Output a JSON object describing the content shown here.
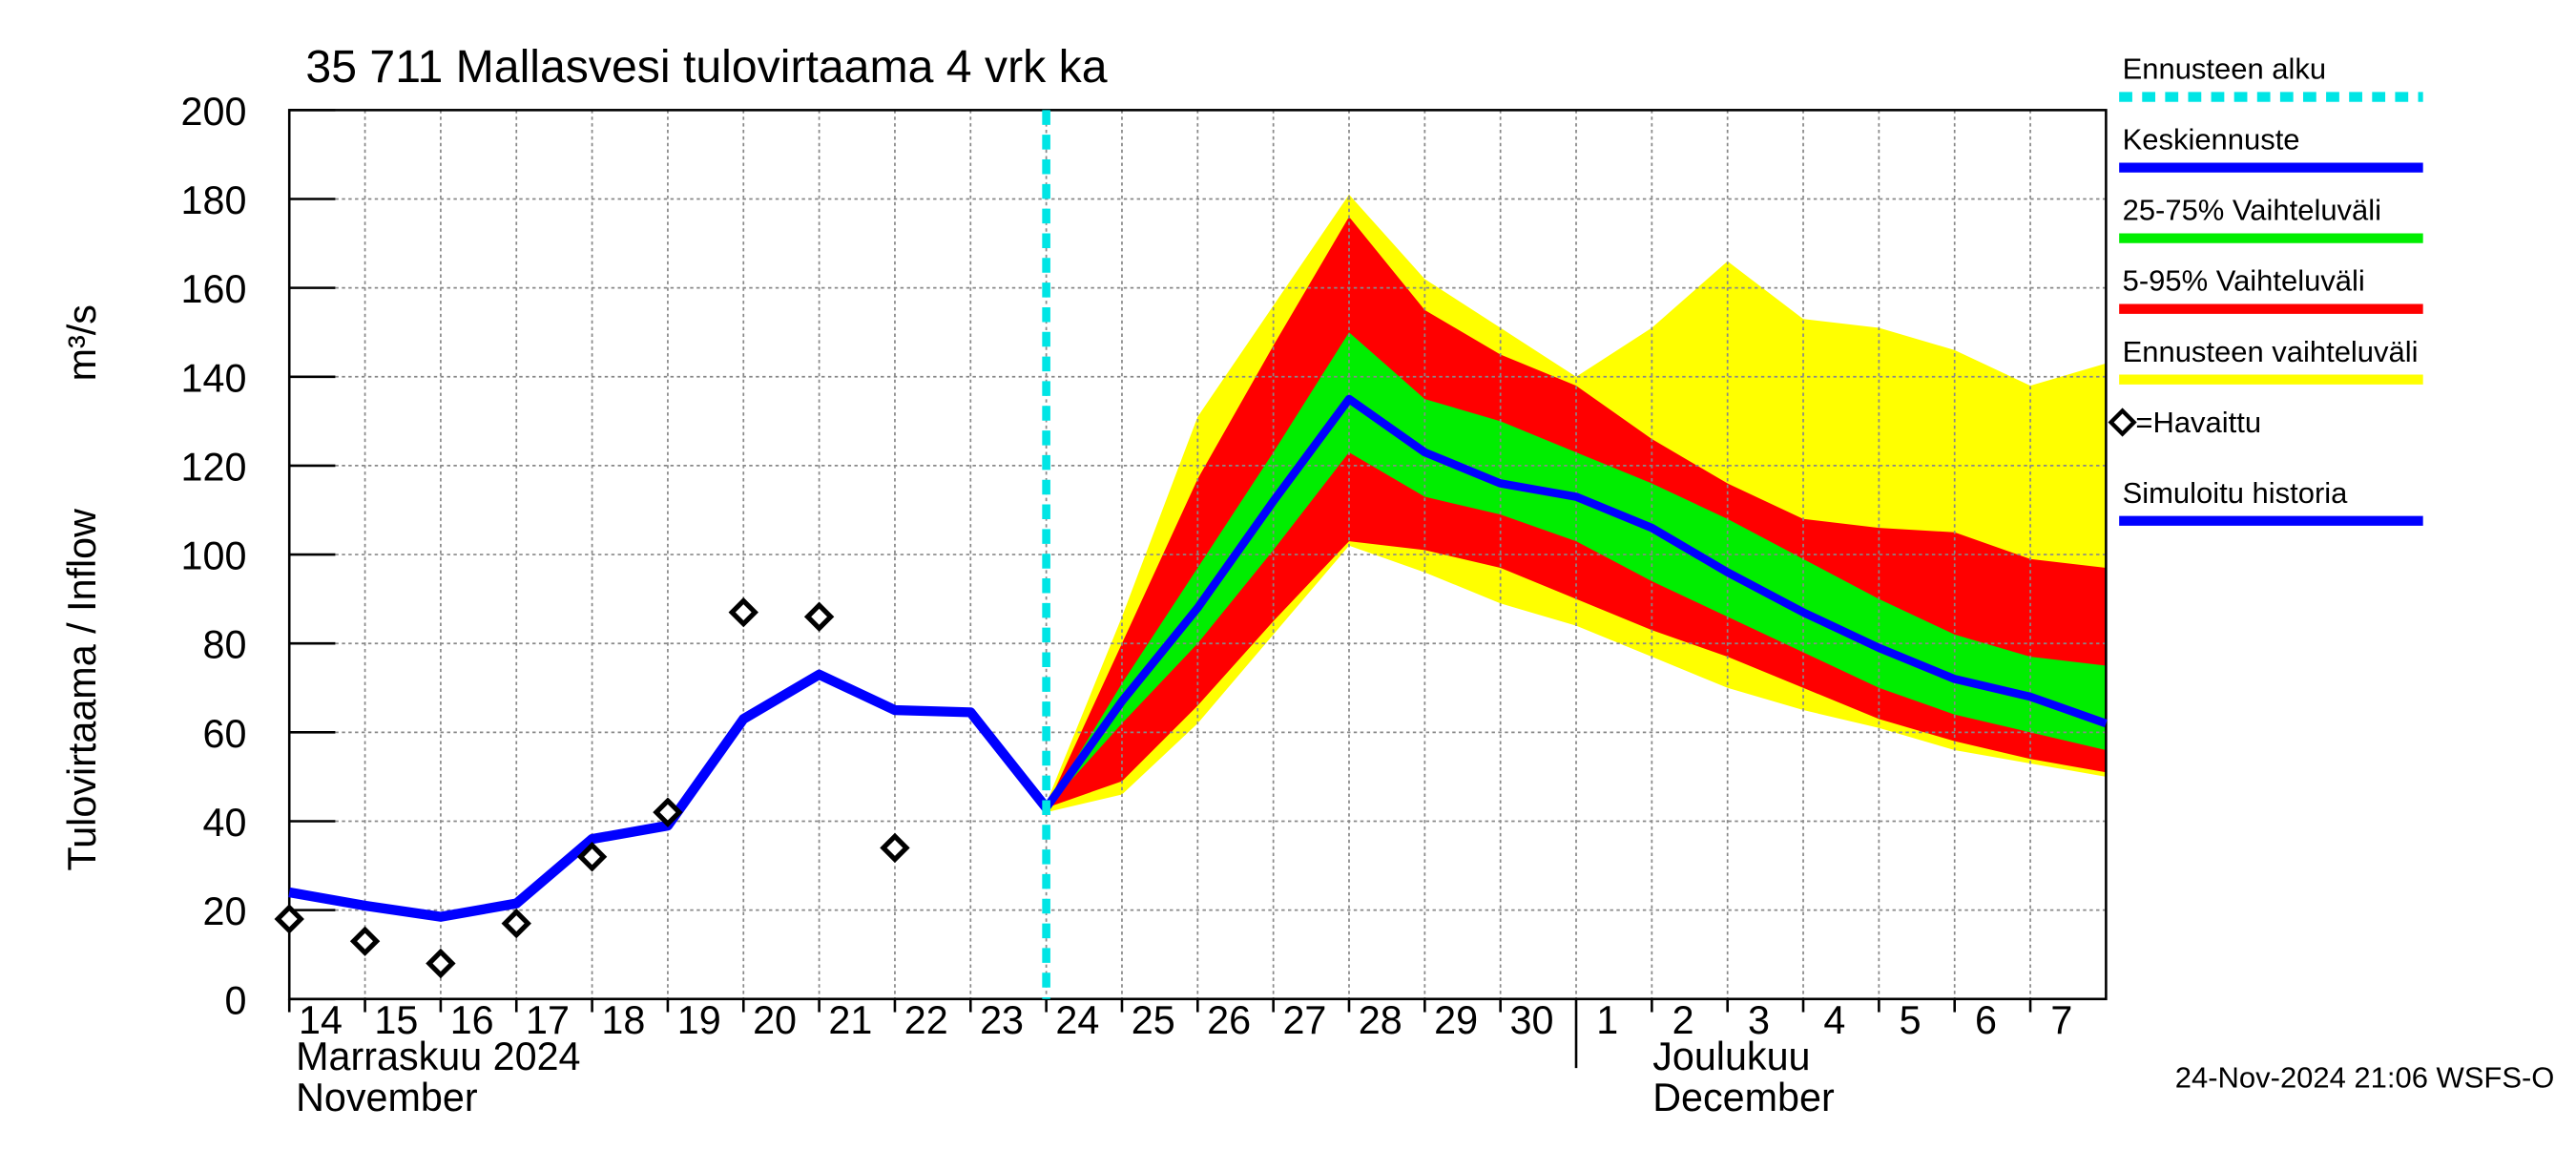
{
  "chart_data": {
    "type": "line",
    "title": "35 711 Mallasvesi tulovirtaama 4 vrk ka",
    "y_label": "Tulovirtaama / Inflow",
    "y_unit": "m³/s",
    "months": [
      "Marraskuu 2024",
      "November",
      "Joulukuu",
      "December"
    ],
    "footer": "24-Nov-2024 21:06 WSFS-O",
    "x": [
      0,
      1,
      2,
      3,
      4,
      5,
      6,
      7,
      8,
      9,
      10,
      11,
      12,
      13,
      14,
      15,
      16,
      17,
      18,
      19,
      20,
      21,
      22,
      23,
      24
    ],
    "xlim": [
      0,
      24
    ],
    "xticks": [
      {
        "value": 0,
        "label": "14"
      },
      {
        "value": 1,
        "label": "15"
      },
      {
        "value": 2,
        "label": "16"
      },
      {
        "value": 3,
        "label": "17"
      },
      {
        "value": 4,
        "label": "18"
      },
      {
        "value": 5,
        "label": "19"
      },
      {
        "value": 6,
        "label": "20"
      },
      {
        "value": 7,
        "label": "21"
      },
      {
        "value": 8,
        "label": "22"
      },
      {
        "value": 9,
        "label": "23"
      },
      {
        "value": 10,
        "label": "24"
      },
      {
        "value": 11,
        "label": "25"
      },
      {
        "value": 12,
        "label": "26"
      },
      {
        "value": 13,
        "label": "27"
      },
      {
        "value": 14,
        "label": "28"
      },
      {
        "value": 15,
        "label": "29"
      },
      {
        "value": 16,
        "label": "30"
      },
      {
        "value": 17,
        "label": "1"
      },
      {
        "value": 18,
        "label": "2"
      },
      {
        "value": 19,
        "label": "3"
      },
      {
        "value": 20,
        "label": "4"
      },
      {
        "value": 21,
        "label": "5"
      },
      {
        "value": 22,
        "label": "6"
      },
      {
        "value": 23,
        "label": "7"
      }
    ],
    "ylim": [
      0,
      200
    ],
    "yticks": [
      0,
      20,
      40,
      60,
      80,
      100,
      120,
      140,
      160,
      180,
      200
    ],
    "grid": true,
    "forecast_start": {
      "name": "Ennusteen alku",
      "x": 10,
      "color": "#00e5e5"
    },
    "bands": [
      {
        "name": "Ennusteen vaihteluväli",
        "color": "#ffff00",
        "lower": [
          null,
          null,
          null,
          null,
          null,
          null,
          null,
          null,
          null,
          null,
          42,
          46,
          62,
          82,
          102,
          96,
          89,
          84,
          77,
          70,
          65,
          61,
          56,
          53,
          50
        ],
        "upper": [
          null,
          null,
          null,
          null,
          null,
          null,
          null,
          null,
          null,
          null,
          44,
          86,
          131,
          156,
          181,
          162,
          151,
          140,
          151,
          166,
          153,
          151,
          146,
          138,
          143
        ]
      },
      {
        "name": "5-95% Vaihteluväli",
        "color": "#ff0000",
        "lower": [
          null,
          null,
          null,
          null,
          null,
          null,
          null,
          null,
          null,
          null,
          43,
          49,
          66,
          85,
          103,
          101,
          97,
          90,
          83,
          77,
          70,
          63,
          58,
          54,
          51
        ],
        "upper": [
          null,
          null,
          null,
          null,
          null,
          null,
          null,
          null,
          null,
          null,
          43,
          80,
          117,
          147,
          176,
          155,
          145,
          138,
          126,
          116,
          108,
          106,
          105,
          99,
          97
        ]
      },
      {
        "name": "25-75% Vaihteluväli",
        "color": "#00ee00",
        "lower": [
          null,
          null,
          null,
          null,
          null,
          null,
          null,
          null,
          null,
          null,
          43,
          62,
          80,
          101,
          123,
          113,
          109,
          103,
          94,
          86,
          78,
          70,
          64,
          60,
          56
        ],
        "upper": [
          null,
          null,
          null,
          null,
          null,
          null,
          null,
          null,
          null,
          null,
          43,
          71,
          97,
          123,
          150,
          135,
          130,
          123,
          116,
          108,
          99,
          90,
          82,
          77,
          75
        ]
      }
    ],
    "series": [
      {
        "name": "Keskiennuste",
        "color": "#0000ff",
        "values": [
          null,
          null,
          null,
          null,
          null,
          null,
          null,
          null,
          null,
          null,
          43,
          67,
          88,
          112,
          135,
          123,
          116,
          113,
          106,
          96,
          87,
          79,
          72,
          68,
          62
        ]
      },
      {
        "name": "Simuloitu historia",
        "color": "#0000ff",
        "values": [
          24,
          21,
          18.5,
          21.5,
          36,
          39,
          63,
          73,
          65,
          64.5,
          43,
          null,
          null,
          null,
          null,
          null,
          null,
          null,
          null,
          null,
          null,
          null,
          null,
          null,
          null
        ]
      }
    ],
    "observed": {
      "name": "=Havaittu",
      "color": "#000000",
      "values": [
        18,
        13,
        8,
        17,
        32,
        42,
        87,
        86,
        34,
        null,
        null,
        null,
        null,
        null,
        null,
        null,
        null,
        null,
        null,
        null,
        null,
        null,
        null,
        null,
        null
      ]
    }
  }
}
